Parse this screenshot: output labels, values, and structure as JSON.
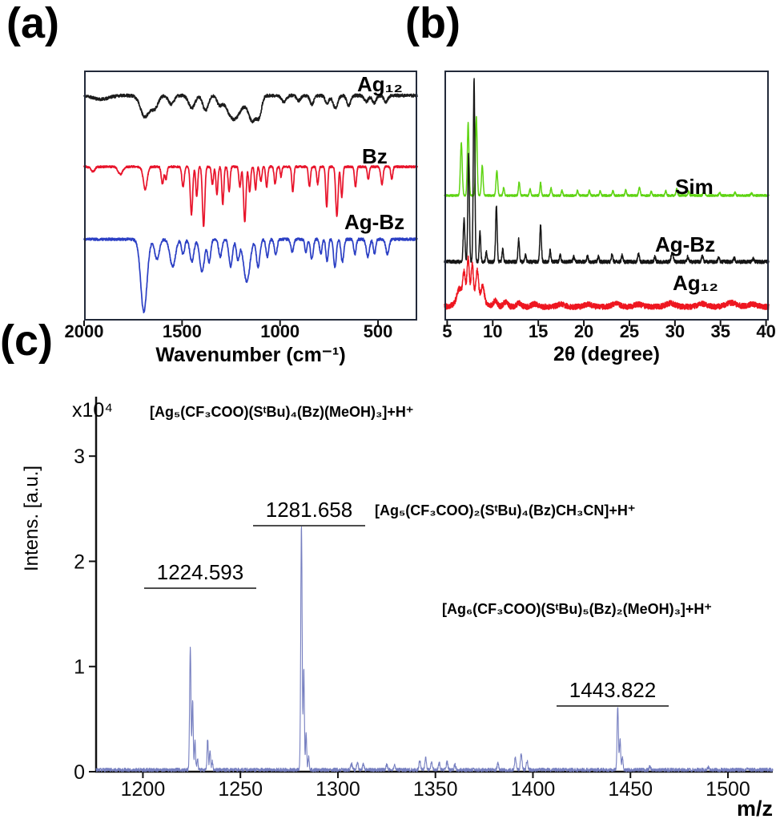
{
  "panels": {
    "a": "(a)",
    "b": "(b)",
    "c": "(c)"
  },
  "chart_data": [
    {
      "id": "ir-spectra",
      "type": "line",
      "panel": "a",
      "xlabel": "Wavenumber (cm⁻¹)",
      "x_tick_values": [
        2000,
        1500,
        1000,
        500
      ],
      "x_range": [
        2000,
        300
      ],
      "x_axis_reversed": true,
      "series": [
        {
          "name": "Ag₁₂",
          "color": "#1c1c1c",
          "baseline": 0.1,
          "noise": 0.006,
          "peaks": [
            [
              1915,
              0.015,
              40
            ],
            [
              1690,
              0.085,
              22
            ],
            [
              1640,
              0.05,
              18
            ],
            [
              1555,
              0.035,
              14
            ],
            [
              1450,
              0.05,
              16
            ],
            [
              1380,
              0.06,
              14
            ],
            [
              1310,
              0.03,
              12
            ],
            [
              1235,
              0.095,
              35
            ],
            [
              1140,
              0.1,
              22
            ],
            [
              1105,
              0.06,
              12
            ],
            [
              980,
              0.025,
              12
            ],
            [
              905,
              0.02,
              10
            ],
            [
              838,
              0.035,
              10
            ],
            [
              760,
              0.03,
              10
            ],
            [
              718,
              0.05,
              12
            ],
            [
              650,
              0.04,
              10
            ],
            [
              560,
              0.025,
              10
            ],
            [
              520,
              0.03,
              10
            ],
            [
              460,
              0.025,
              10
            ]
          ]
        },
        {
          "name": "Bz",
          "color": "#e8132a",
          "baseline": 0.385,
          "noise": 0.004,
          "peaks": [
            [
              1955,
              0.02,
              10
            ],
            [
              1815,
              0.03,
              12
            ],
            [
              1688,
              0.09,
              10
            ],
            [
              1600,
              0.07,
              6
            ],
            [
              1582,
              0.05,
              5
            ],
            [
              1495,
              0.08,
              6
            ],
            [
              1452,
              0.19,
              6
            ],
            [
              1425,
              0.12,
              5
            ],
            [
              1390,
              0.24,
              6
            ],
            [
              1345,
              0.07,
              5
            ],
            [
              1322,
              0.11,
              5
            ],
            [
              1292,
              0.15,
              5
            ],
            [
              1260,
              0.1,
              5
            ],
            [
              1205,
              0.08,
              5
            ],
            [
              1180,
              0.22,
              6
            ],
            [
              1155,
              0.1,
              5
            ],
            [
              1125,
              0.09,
              5
            ],
            [
              1098,
              0.06,
              5
            ],
            [
              1068,
              0.08,
              5
            ],
            [
              1025,
              0.07,
              5
            ],
            [
              995,
              0.04,
              4
            ],
            [
              935,
              0.1,
              5
            ],
            [
              850,
              0.08,
              5
            ],
            [
              808,
              0.07,
              5
            ],
            [
              762,
              0.16,
              5
            ],
            [
              710,
              0.2,
              6
            ],
            [
              685,
              0.12,
              5
            ],
            [
              615,
              0.08,
              5
            ],
            [
              550,
              0.05,
              5
            ],
            [
              480,
              0.07,
              6
            ],
            [
              430,
              0.05,
              5
            ]
          ]
        },
        {
          "name": "Ag-Bz",
          "color": "#2b3fc4",
          "baseline": 0.675,
          "noise": 0.005,
          "peaks": [
            [
              1695,
              0.29,
              16
            ],
            [
              1628,
              0.08,
              12
            ],
            [
              1548,
              0.11,
              14
            ],
            [
              1495,
              0.06,
              8
            ],
            [
              1450,
              0.09,
              10
            ],
            [
              1398,
              0.13,
              12
            ],
            [
              1362,
              0.09,
              8
            ],
            [
              1305,
              0.07,
              8
            ],
            [
              1252,
              0.11,
              9
            ],
            [
              1215,
              0.08,
              8
            ],
            [
              1170,
              0.17,
              16
            ],
            [
              1112,
              0.11,
              9
            ],
            [
              1065,
              0.07,
              7
            ],
            [
              1022,
              0.06,
              7
            ],
            [
              938,
              0.05,
              7
            ],
            [
              868,
              0.05,
              6
            ],
            [
              838,
              0.08,
              7
            ],
            [
              792,
              0.06,
              6
            ],
            [
              760,
              0.09,
              6
            ],
            [
              720,
              0.11,
              7
            ],
            [
              682,
              0.09,
              7
            ],
            [
              618,
              0.06,
              6
            ],
            [
              552,
              0.07,
              8
            ],
            [
              518,
              0.06,
              6
            ],
            [
              452,
              0.06,
              8
            ]
          ]
        }
      ]
    },
    {
      "id": "pxrd",
      "type": "line",
      "panel": "b",
      "xlabel": "2θ (degree)",
      "x_tick_values": [
        5,
        10,
        15,
        20,
        25,
        30,
        35,
        40
      ],
      "x_range": [
        4.7,
        40.3
      ],
      "series": [
        {
          "name": "Sim",
          "color": "#5fd413",
          "baseline": 0.5,
          "noise": 0.004,
          "peaks": [
            [
              6.55,
              0.21,
              0.1
            ],
            [
              7.3,
              0.29,
              0.09
            ],
            [
              8.2,
              0.315,
              0.09
            ],
            [
              8.85,
              0.12,
              0.09
            ],
            [
              10.45,
              0.1,
              0.09
            ],
            [
              11.2,
              0.03,
              0.08
            ],
            [
              12.9,
              0.055,
              0.08
            ],
            [
              14.1,
              0.025,
              0.08
            ],
            [
              15.25,
              0.05,
              0.08
            ],
            [
              16.4,
              0.03,
              0.08
            ],
            [
              17.6,
              0.02,
              0.08
            ],
            [
              19.3,
              0.02,
              0.08
            ],
            [
              20.6,
              0.02,
              0.08
            ],
            [
              21.8,
              0.018,
              0.08
            ],
            [
              23.2,
              0.02,
              0.08
            ],
            [
              24.6,
              0.022,
              0.08
            ],
            [
              26.1,
              0.032,
              0.09
            ],
            [
              27.4,
              0.015,
              0.08
            ],
            [
              29.0,
              0.018,
              0.08
            ],
            [
              30.2,
              0.025,
              0.09
            ],
            [
              31.5,
              0.018,
              0.08
            ],
            [
              33.2,
              0.02,
              0.09
            ],
            [
              34.9,
              0.012,
              0.08
            ],
            [
              36.6,
              0.012,
              0.08
            ],
            [
              38.4,
              0.01,
              0.08
            ]
          ]
        },
        {
          "name": "Ag-Bz",
          "color": "#161616",
          "baseline": 0.765,
          "noise": 0.007,
          "peaks": [
            [
              6.85,
              0.17,
              0.09
            ],
            [
              7.35,
              0.43,
              0.085
            ],
            [
              7.95,
              0.73,
              0.085
            ],
            [
              8.6,
              0.12,
              0.08
            ],
            [
              9.3,
              0.04,
              0.08
            ],
            [
              10.4,
              0.225,
              0.085
            ],
            [
              11.1,
              0.05,
              0.08
            ],
            [
              12.85,
              0.09,
              0.08
            ],
            [
              13.6,
              0.03,
              0.08
            ],
            [
              15.25,
              0.145,
              0.09
            ],
            [
              16.3,
              0.045,
              0.08
            ],
            [
              17.4,
              0.03,
              0.08
            ],
            [
              18.9,
              0.02,
              0.08
            ],
            [
              20.4,
              0.025,
              0.08
            ],
            [
              21.6,
              0.02,
              0.08
            ],
            [
              23.1,
              0.03,
              0.08
            ],
            [
              24.2,
              0.025,
              0.08
            ],
            [
              26.0,
              0.032,
              0.09
            ],
            [
              27.8,
              0.02,
              0.08
            ],
            [
              29.7,
              0.035,
              0.12
            ],
            [
              31.4,
              0.02,
              0.09
            ],
            [
              33.0,
              0.022,
              0.1
            ],
            [
              34.8,
              0.015,
              0.09
            ],
            [
              36.5,
              0.015,
              0.1
            ],
            [
              38.6,
              0.012,
              0.09
            ]
          ]
        },
        {
          "name": "Ag₁₂",
          "color": "#ee1620",
          "baseline": 0.945,
          "noise": 0.011,
          "peaks": [
            [
              6.3,
              0.05,
              0.25
            ],
            [
              6.85,
              0.1,
              0.14
            ],
            [
              7.3,
              0.145,
              0.12
            ],
            [
              7.75,
              0.12,
              0.12
            ],
            [
              8.3,
              0.105,
              0.14
            ],
            [
              8.9,
              0.06,
              0.18
            ],
            [
              7.6,
              0.05,
              1.0
            ],
            [
              10.3,
              0.025,
              0.2
            ],
            [
              11.4,
              0.018,
              0.25
            ],
            [
              12.9,
              0.015,
              0.25
            ],
            [
              14.6,
              0.012,
              0.3
            ],
            [
              17.5,
              0.01,
              0.4
            ],
            [
              20.5,
              0.01,
              0.4
            ],
            [
              23.5,
              0.012,
              0.4
            ],
            [
              26.0,
              0.01,
              0.4
            ],
            [
              29.5,
              0.014,
              0.5
            ],
            [
              33.0,
              0.012,
              0.5
            ],
            [
              36.2,
              0.016,
              0.6
            ],
            [
              38.5,
              0.01,
              0.5
            ]
          ]
        }
      ]
    },
    {
      "id": "esi-ms",
      "type": "line",
      "panel": "c",
      "xlabel": "m/z",
      "ylabel": "Intens. [a.u.]",
      "y_scale_label": "x10⁴",
      "x_tick_values": [
        1200,
        1250,
        1300,
        1350,
        1400,
        1450,
        1500
      ],
      "y_tick_values": [
        0,
        1,
        2,
        3
      ],
      "x_range": [
        1176,
        1523
      ],
      "y_range": [
        0,
        3.55
      ],
      "series": [
        {
          "name": "mass spectrum",
          "color": "#767fc0",
          "noise": 0.022,
          "peaks": [
            [
              1224.3,
              1.16,
              0.35
            ],
            [
              1225.5,
              0.66,
              0.3
            ],
            [
              1226.7,
              0.28,
              0.3
            ],
            [
              1228.0,
              0.1,
              0.3
            ],
            [
              1233.2,
              0.3,
              0.3
            ],
            [
              1234.4,
              0.18,
              0.3
            ],
            [
              1235.6,
              0.08,
              0.3
            ],
            [
              1281.3,
              2.33,
              0.35
            ],
            [
              1282.5,
              0.95,
              0.3
            ],
            [
              1283.7,
              0.36,
              0.3
            ],
            [
              1285.0,
              0.12,
              0.3
            ],
            [
              1307,
              0.06,
              0.4
            ],
            [
              1310,
              0.07,
              0.4
            ],
            [
              1313,
              0.05,
              0.4
            ],
            [
              1325,
              0.05,
              0.4
            ],
            [
              1329,
              0.04,
              0.4
            ],
            [
              1342,
              0.09,
              0.4
            ],
            [
              1345,
              0.11,
              0.4
            ],
            [
              1348,
              0.07,
              0.4
            ],
            [
              1352,
              0.06,
              0.4
            ],
            [
              1356,
              0.08,
              0.4
            ],
            [
              1360,
              0.05,
              0.4
            ],
            [
              1382,
              0.06,
              0.4
            ],
            [
              1391,
              0.12,
              0.4
            ],
            [
              1394,
              0.15,
              0.4
            ],
            [
              1397,
              0.08,
              0.4
            ],
            [
              1443.5,
              0.6,
              0.35
            ],
            [
              1444.7,
              0.3,
              0.3
            ],
            [
              1445.9,
              0.13,
              0.3
            ],
            [
              1460,
              0.03,
              0.4
            ],
            [
              1490,
              0.025,
              0.4
            ],
            [
              1510,
              0.02,
              0.4
            ]
          ]
        }
      ],
      "peak_labels": [
        {
          "text": "1224.593",
          "mz": 1224.593
        },
        {
          "text": "1281.658",
          "mz": 1281.658
        },
        {
          "text": "1443.822",
          "mz": 1443.822
        }
      ],
      "annotations": [
        {
          "text": "[Ag₅(CF₃COO)(SᵗBu)₄(Bz)(MeOH)₃]+H⁺"
        },
        {
          "text": "[Ag₅(CF₃COO)₂(SᵗBu)₄(Bz)CH₃CN]+H⁺"
        },
        {
          "text": "[Ag₆(CF₃COO)(SᵗBu)₅(Bz)₂(MeOH)₃]+H⁺"
        }
      ]
    }
  ]
}
